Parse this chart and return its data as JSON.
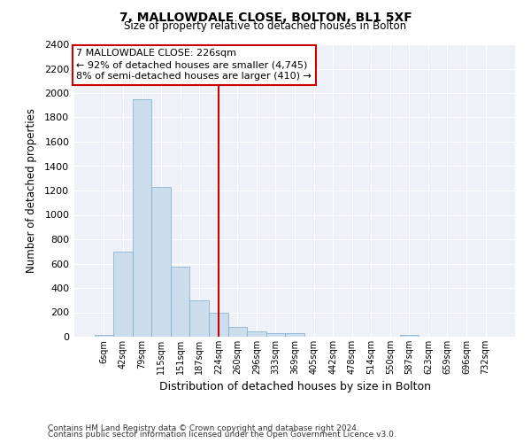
{
  "title1": "7, MALLOWDALE CLOSE, BOLTON, BL1 5XF",
  "title2": "Size of property relative to detached houses in Bolton",
  "xlabel": "Distribution of detached houses by size in Bolton",
  "ylabel": "Number of detached properties",
  "bar_color": "#ccdded",
  "bar_edge_color": "#7aaac8",
  "background_color": "#eef2f8",
  "grid_color": "#ffffff",
  "annotation_box_color": "#cc0000",
  "vline_color": "#cc0000",
  "annotation_line1": "7 MALLOWDALE CLOSE: 226sqm",
  "annotation_line2": "← 92% of detached houses are smaller (4,745)",
  "annotation_line3": "8% of semi-detached houses are larger (410) →",
  "bin_labels": [
    "6sqm",
    "42sqm",
    "79sqm",
    "115sqm",
    "151sqm",
    "187sqm",
    "224sqm",
    "260sqm",
    "296sqm",
    "333sqm",
    "369sqm",
    "405sqm",
    "442sqm",
    "478sqm",
    "514sqm",
    "550sqm",
    "587sqm",
    "623sqm",
    "659sqm",
    "696sqm",
    "732sqm"
  ],
  "bar_heights": [
    15,
    700,
    1950,
    1230,
    575,
    300,
    200,
    80,
    45,
    30,
    30,
    0,
    0,
    0,
    0,
    0,
    15,
    0,
    0,
    0,
    0
  ],
  "vline_index": 6,
  "ylim": [
    0,
    2400
  ],
  "yticks": [
    0,
    200,
    400,
    600,
    800,
    1000,
    1200,
    1400,
    1600,
    1800,
    2000,
    2200,
    2400
  ],
  "footnote1": "Contains HM Land Registry data © Crown copyright and database right 2024.",
  "footnote2": "Contains public sector information licensed under the Open Government Licence v3.0."
}
